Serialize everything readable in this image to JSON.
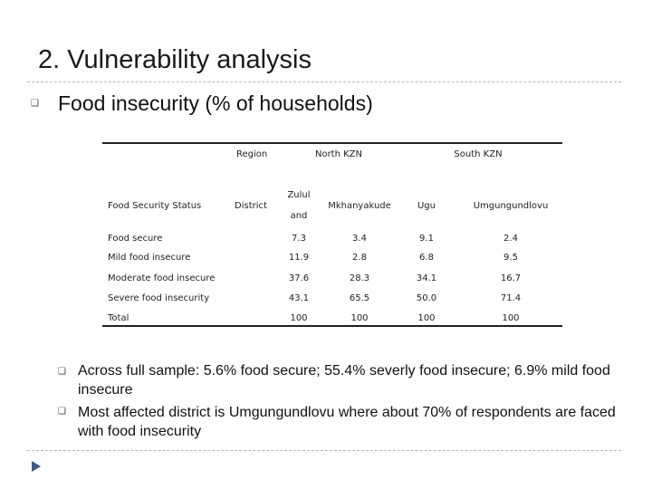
{
  "slide": {
    "title": "2.  Vulnerability analysis",
    "heading": "Food insecurity (% of households)",
    "bullet_icon": "square-bullet-icon",
    "bullets": [
      "Across full sample: 5.6% food secure; 55.4% severly food insecure; 6.9% mild food insecure",
      "Most affected district is Umgungundlovu where about 70% of respondents are faced with food insecurity"
    ]
  },
  "table": {
    "region_label": "Region",
    "regions": [
      "North KZN",
      "South KZN"
    ],
    "status_label": "Food Security Status",
    "district_label": "District",
    "districts": [
      {
        "line1": "Zulul",
        "line2": "and"
      },
      {
        "line1": "Mkhanyakude",
        "line2": ""
      },
      {
        "line1": "Ugu",
        "line2": ""
      },
      {
        "line1": "Umgungundlovu",
        "line2": ""
      }
    ],
    "rows": [
      {
        "label": "Food secure",
        "values": [
          "7.3",
          "3.4",
          "9.1",
          "2.4"
        ]
      },
      {
        "label": "Mild food insecure",
        "values": [
          "11.9",
          "2.8",
          "6.8",
          "9.5"
        ]
      },
      {
        "label": "Moderate food insecure",
        "values": [
          "37.6",
          "28.3",
          "34.1",
          "16.7"
        ]
      },
      {
        "label": "Severe food insecurity",
        "values": [
          "43.1",
          "65.5",
          "50.0",
          "71.4"
        ]
      },
      {
        "label": "Total",
        "values": [
          "100",
          "100",
          "100",
          "100"
        ]
      }
    ]
  }
}
